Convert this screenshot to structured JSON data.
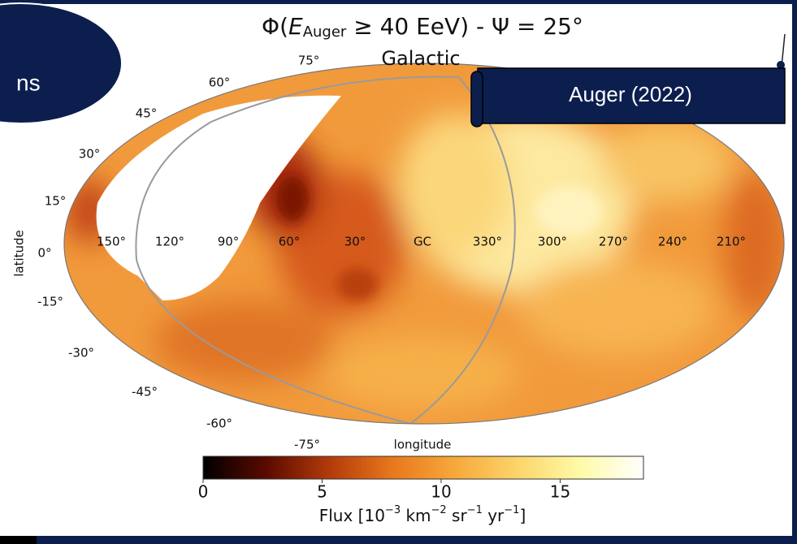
{
  "slide": {
    "corner_label": "ns",
    "banner": "Auger  (2022)"
  },
  "figure": {
    "title": {
      "prefix": "Φ(",
      "symbol": "E",
      "subscript": "Auger",
      "suffix": " ≥ 40 EeV) - Ψ = 25°"
    },
    "projection_label": "Galactic",
    "x_label": "longitude",
    "y_label": "latitude",
    "longitude_labels": [
      "150°",
      "120°",
      "90°",
      "60°",
      "30°",
      "GC",
      "330°",
      "300°",
      "270°",
      "240°",
      "210°"
    ],
    "latitude_labels": [
      "75°",
      "60°",
      "45°",
      "30°",
      "15°",
      "0°",
      "-15°",
      "-30°",
      "-45°",
      "-60°",
      "-75°"
    ],
    "colorbar": {
      "label_parts": [
        "Flux [10",
        "−3",
        " km",
        "−2",
        " sr",
        "−1",
        " yr",
        "−1",
        "]"
      ],
      "lim": [
        0,
        18.5
      ],
      "ticks": [
        0,
        5,
        10,
        15
      ],
      "colors": [
        "#000000",
        "#5a0a00",
        "#b23a0a",
        "#e8771c",
        "#f7a83a",
        "#fbd56a",
        "#fffaa8",
        "#ffffff"
      ]
    }
  }
}
